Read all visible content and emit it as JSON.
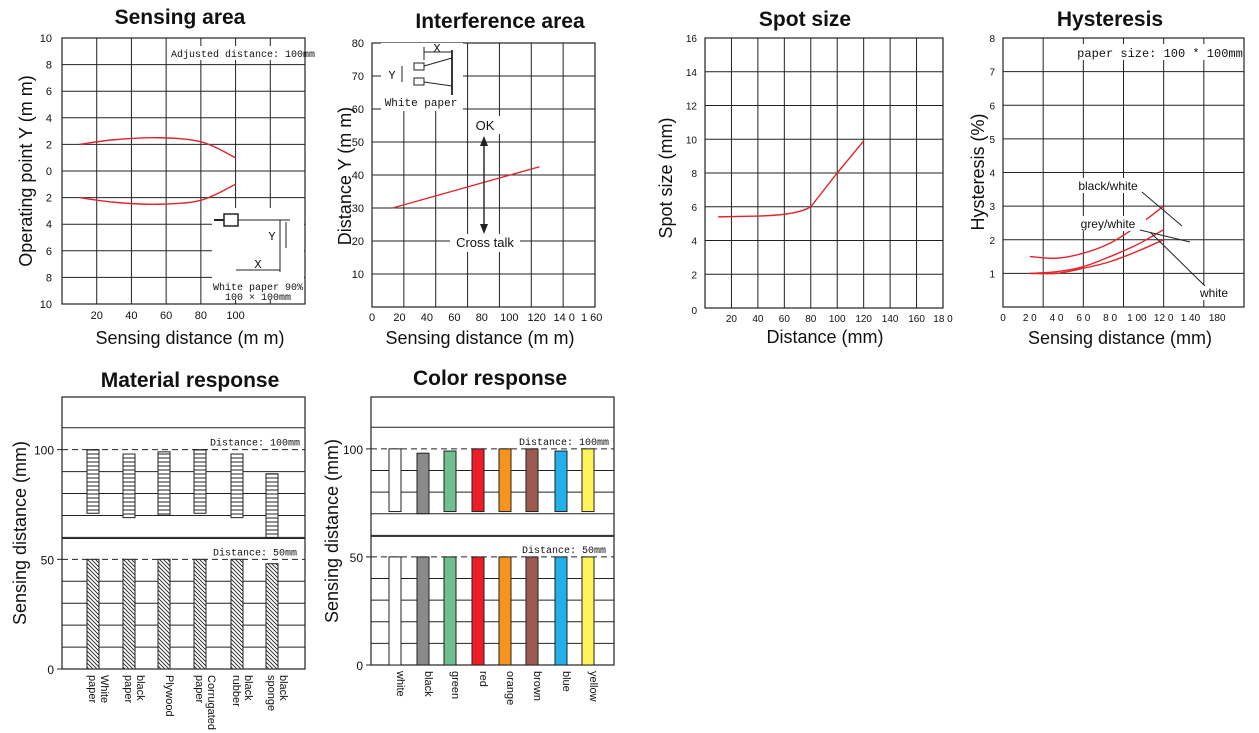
{
  "chart_data": [
    {
      "type": "line",
      "title": "Sensing area",
      "xlabel": "Sensing distance (m m)",
      "ylabel": "Operating point Y (m m)",
      "xlim": [
        0,
        140
      ],
      "ylim": [
        -10,
        10
      ],
      "x_ticks": [
        "20",
        "40",
        "60",
        "80",
        "100"
      ],
      "y_ticks": [
        "10",
        "8",
        "6",
        "4",
        "2",
        "0",
        "2",
        "4",
        "6",
        "8",
        "10"
      ],
      "grid": true,
      "annotations": [
        "Adjusted distance: 100mm",
        "White paper 90%",
        "100 × 100mm",
        "X",
        "Y"
      ],
      "series": [
        {
          "x": [
            10,
            30,
            55,
            80,
            100
          ],
          "y": [
            2.0,
            2.35,
            2.5,
            2.2,
            1.0
          ]
        },
        {
          "x": [
            10,
            30,
            55,
            80,
            100
          ],
          "y": [
            -2.0,
            -2.35,
            -2.5,
            -2.2,
            -1.0
          ]
        }
      ],
      "color": "#e0242b"
    },
    {
      "type": "line",
      "title": "Interference area",
      "xlabel": "Sensing distance (m m)",
      "ylabel": "Distance Y (m m)",
      "xlim": [
        0,
        160
      ],
      "ylim": [
        0,
        80
      ],
      "x_ticks": [
        "0",
        "20",
        "40",
        "60",
        "80",
        "100",
        "120",
        "14 0",
        "1 60"
      ],
      "y_ticks": [
        "10",
        "20",
        "30",
        "40",
        "50",
        "60",
        "70",
        "80"
      ],
      "grid": true,
      "annotations": [
        "OK",
        "Cross talk",
        "White paper",
        "X",
        "Y"
      ],
      "series": [
        {
          "x": [
            15,
            122
          ],
          "y": [
            30,
            42.5
          ]
        }
      ],
      "color": "#e0242b"
    },
    {
      "type": "line",
      "title": "Spot size",
      "xlabel": "Distance (mm)",
      "ylabel": "Spot size (mm)",
      "xlim": [
        0,
        180
      ],
      "ylim": [
        0,
        16
      ],
      "x_ticks": [
        "0",
        "20",
        "40",
        "60",
        "80",
        "100",
        "120",
        "140",
        "160",
        "18 0"
      ],
      "y_ticks": [
        "2",
        "4",
        "6",
        "8",
        "10",
        "12",
        "14",
        "16"
      ],
      "grid": true,
      "series": [
        {
          "x": [
            10,
            40,
            70,
            80,
            100,
            120
          ],
          "y": [
            5.4,
            5.45,
            5.5,
            6.0,
            8.0,
            9.9
          ]
        }
      ],
      "color": "#e0242b"
    },
    {
      "type": "line",
      "title": "Hysteresis",
      "xlabel": "Sensing distance (mm)",
      "ylabel": "Hysteresis (%)",
      "xlim": [
        0,
        180
      ],
      "ylim": [
        0,
        8
      ],
      "x_ticks": [
        "0",
        "2 0",
        "4 0",
        "6 0",
        "8 0",
        "1 00",
        "12 0",
        "1 40",
        "180"
      ],
      "y_ticks": [
        "1",
        "2",
        "3",
        "4",
        "5",
        "6",
        "7",
        "8"
      ],
      "grid": true,
      "annotations": [
        "paper size: 100 * 100mm"
      ],
      "series": [
        {
          "name": "black/white",
          "x": [
            20,
            40,
            60,
            80,
            100,
            120
          ],
          "y": [
            1.5,
            1.45,
            1.6,
            1.9,
            2.4,
            3.0
          ]
        },
        {
          "name": "grey/white",
          "x": [
            20,
            40,
            60,
            80,
            100,
            120
          ],
          "y": [
            1.0,
            1.05,
            1.2,
            1.5,
            1.85,
            2.3
          ]
        },
        {
          "name": "white",
          "x": [
            20,
            40,
            60,
            80,
            100,
            120
          ],
          "y": [
            1.0,
            1.0,
            1.15,
            1.35,
            1.65,
            2.0
          ]
        }
      ],
      "color": "#e0242b"
    },
    {
      "type": "bar",
      "title": "Material response",
      "ylabel": "Sensing distance (mm)",
      "y_ticks": [
        "0",
        "50",
        "100"
      ],
      "categories": [
        "White paper",
        "black paper",
        "Plywood",
        "Corrugated paper",
        "black rubber",
        "black sponge"
      ],
      "series": [
        {
          "name": "Distance: 100mm",
          "values": [
            [
              71,
              100
            ],
            [
              69,
              98
            ],
            [
              70,
              99
            ],
            [
              71,
              100
            ],
            [
              69,
              98
            ],
            [
              60,
              89
            ]
          ]
        },
        {
          "name": "Distance: 50mm",
          "values": [
            50,
            50,
            50,
            50,
            50,
            48
          ]
        }
      ]
    },
    {
      "type": "bar",
      "title": "Color response",
      "ylabel": "Sensing distance (mm)",
      "y_ticks": [
        "0",
        "50",
        "100"
      ],
      "categories": [
        "white",
        "black",
        "green",
        "red",
        "orange",
        "brown",
        "blue",
        "yellow"
      ],
      "colors": [
        "#ffffff",
        "#8a8a8a",
        "#6fc08c",
        "#ee1c25",
        "#f7941d",
        "#9c5b4e",
        "#1fb1e7",
        "#fff35c"
      ],
      "series": [
        {
          "name": "Distance: 100mm",
          "values": [
            [
              71,
              100
            ],
            [
              70,
              98
            ],
            [
              71,
              99
            ],
            [
              71,
              100
            ],
            [
              71,
              100
            ],
            [
              71,
              100
            ],
            [
              71,
              99
            ],
            [
              71,
              100
            ]
          ]
        },
        {
          "name": "Distance: 50mm",
          "values": [
            50,
            50,
            50,
            50,
            50,
            50,
            50,
            50
          ]
        }
      ]
    }
  ]
}
